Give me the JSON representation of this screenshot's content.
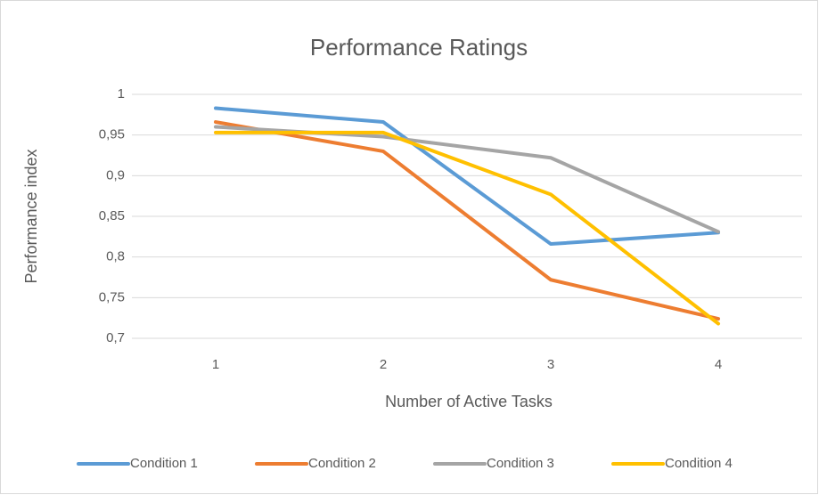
{
  "chart_data": {
    "type": "line",
    "title": "Performance Ratings",
    "x_label": "Number of Active Tasks",
    "y_label": "Performance index",
    "categories": [
      "1",
      "2",
      "3",
      "4"
    ],
    "series": [
      {
        "name": "Condition 1",
        "color": "#5b9bd5",
        "values": [
          0.983,
          0.966,
          0.816,
          0.83
        ]
      },
      {
        "name": "Condition 2",
        "color": "#ed7d31",
        "values": [
          0.966,
          0.93,
          0.772,
          0.724
        ]
      },
      {
        "name": "Condition 3",
        "color": "#a5a5a5",
        "values": [
          0.96,
          0.948,
          0.922,
          0.831
        ]
      },
      {
        "name": "Condition 4",
        "color": "#ffc000",
        "values": [
          0.953,
          0.953,
          0.877,
          0.718
        ]
      }
    ],
    "ylim": [
      0.7,
      1
    ],
    "yticks": [
      {
        "value": 0.7,
        "label": "0,7"
      },
      {
        "value": 0.75,
        "label": "0,75"
      },
      {
        "value": 0.8,
        "label": "0,8"
      },
      {
        "value": 0.85,
        "label": "0,85"
      },
      {
        "value": 0.9,
        "label": "0,9"
      },
      {
        "value": 0.95,
        "label": "0,95"
      },
      1
    ],
    "grid": true,
    "legend": "bottom"
  }
}
